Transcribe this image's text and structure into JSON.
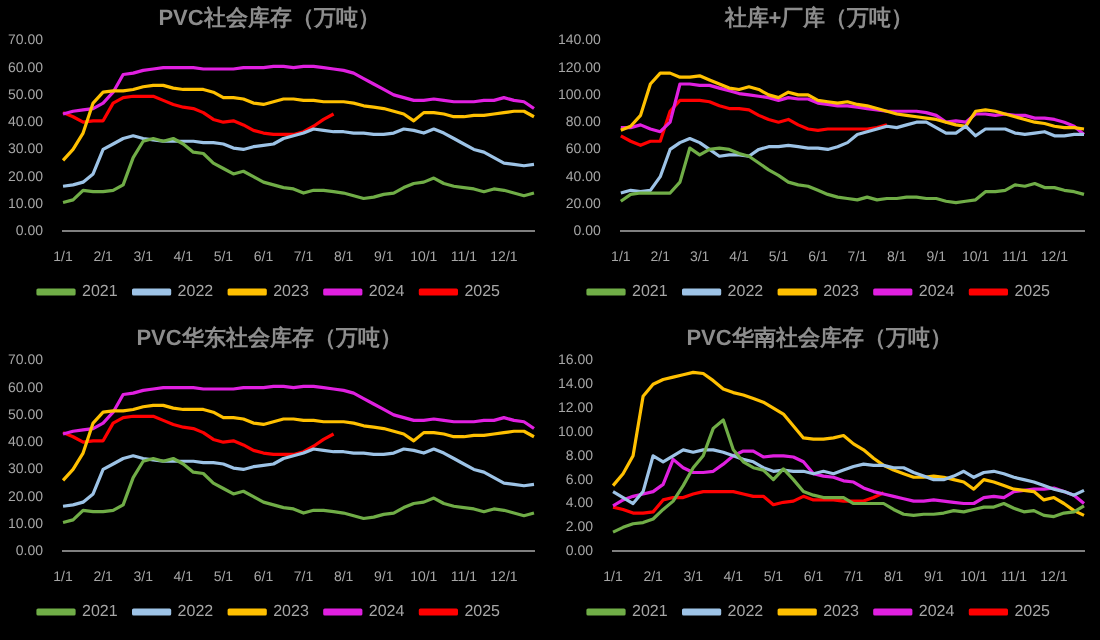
{
  "chart_data": [
    {
      "type": "line",
      "title": "PVC社会库存（万吨）",
      "categories": [
        "1/1",
        null,
        null,
        null,
        "2/1",
        null,
        null,
        null,
        "3/1",
        null,
        null,
        null,
        "4/1",
        null,
        null,
        null,
        "5/1",
        null,
        null,
        null,
        "6/1",
        null,
        null,
        null,
        "7/1",
        null,
        null,
        null,
        "8/1",
        null,
        null,
        null,
        "9/1",
        null,
        null,
        null,
        "10/1",
        null,
        null,
        null,
        "11/1",
        null,
        null,
        null,
        "12/1",
        null,
        null,
        null
      ],
      "ylim": [
        0,
        70
      ],
      "yticks": [
        {
          "value": 0,
          "label": "0.00"
        },
        {
          "value": 10,
          "label": "10.00"
        },
        {
          "value": 20,
          "label": "20.00"
        },
        {
          "value": 30,
          "label": "30.00"
        },
        {
          "value": 40,
          "label": "40.00"
        },
        {
          "value": 50,
          "label": "50.00"
        },
        {
          "value": 60,
          "label": "60.00"
        },
        {
          "value": 70,
          "label": "70.00"
        }
      ],
      "legend": "bottom",
      "marker": "none",
      "series": [
        {
          "name": "2021",
          "color": "#70ad47",
          "values": [
            10.5,
            11.5,
            15,
            14.5,
            14.5,
            15,
            17,
            27,
            33,
            34,
            33,
            34,
            32,
            29,
            28.5,
            25,
            23,
            21,
            22,
            20,
            18,
            17,
            16,
            15.5,
            14,
            15,
            15,
            14.5,
            14,
            13,
            12,
            12.5,
            13.5,
            14,
            16,
            17.5,
            18,
            19.5,
            17.5,
            16.5,
            16,
            15.5,
            14.5,
            15.5,
            15,
            14,
            13,
            14
          ]
        },
        {
          "name": "2022",
          "color": "#9dc3e6",
          "values": [
            16.5,
            17,
            18,
            21,
            30,
            32,
            34,
            35,
            34,
            33.5,
            33,
            33,
            33,
            33,
            32.5,
            32.5,
            32,
            30.5,
            30,
            31,
            31.5,
            32,
            34,
            35,
            36,
            37.5,
            37,
            36.5,
            36.5,
            36,
            36,
            35.5,
            35.5,
            36,
            37.5,
            37,
            36,
            37.5,
            36,
            34,
            32,
            30,
            29,
            27,
            25,
            24.5,
            24,
            24.5
          ]
        },
        {
          "name": "2023",
          "color": "#ffc000",
          "values": [
            26,
            30,
            36,
            47,
            51,
            51.5,
            51.5,
            52,
            53,
            53.5,
            53.5,
            52.5,
            52,
            52,
            52,
            51,
            49,
            49,
            48.5,
            47,
            46.5,
            47.5,
            48.5,
            48.5,
            48,
            48,
            47.5,
            47.5,
            47.5,
            47,
            46,
            45.5,
            45,
            44,
            43,
            40.5,
            43.5,
            43.5,
            43,
            42,
            42,
            42.5,
            42.5,
            43,
            43.5,
            44,
            44,
            42
          ]
        },
        {
          "name": "2024",
          "color": "#e020e0",
          "values": [
            43,
            44,
            44.5,
            45,
            47,
            51,
            57.5,
            58,
            59,
            59.5,
            60,
            60,
            60,
            60,
            59.5,
            59.5,
            59.5,
            59.5,
            60,
            60,
            60,
            60.5,
            60.5,
            60,
            60.5,
            60.5,
            60,
            59.5,
            59,
            58,
            56,
            54,
            52,
            50,
            49,
            48,
            48,
            48.5,
            48,
            47.5,
            47.5,
            47.5,
            48,
            48,
            49,
            48,
            47.5,
            45
          ]
        },
        {
          "name": "2025",
          "color": "#ff0000",
          "values": [
            43.5,
            42,
            40,
            40.5,
            40.5,
            47,
            49,
            49.5,
            49.5,
            49.5,
            48,
            46.5,
            45.5,
            45,
            43.5,
            41,
            40,
            40.5,
            39,
            37,
            36,
            35.5,
            35.5,
            35.5,
            36.5,
            38.5,
            41,
            43,
            null,
            null,
            null,
            null,
            null,
            null,
            null,
            null,
            null,
            null,
            null,
            null,
            null,
            null,
            null,
            null,
            null,
            null,
            null,
            null
          ]
        }
      ]
    },
    {
      "type": "line",
      "title": "社库+厂库（万吨）",
      "categories": [
        "1/1",
        null,
        null,
        null,
        "2/1",
        null,
        null,
        null,
        "3/1",
        null,
        null,
        null,
        "4/1",
        null,
        null,
        null,
        "5/1",
        null,
        null,
        null,
        "6/1",
        null,
        null,
        null,
        "7/1",
        null,
        null,
        null,
        "8/1",
        null,
        null,
        null,
        "9/1",
        null,
        null,
        null,
        "10/1",
        null,
        null,
        null,
        "11/1",
        null,
        null,
        null,
        "12/1",
        null,
        null,
        null
      ],
      "ylim": [
        0,
        140
      ],
      "yticks": [
        {
          "value": 0,
          "label": "0.00"
        },
        {
          "value": 20,
          "label": "20.00"
        },
        {
          "value": 40,
          "label": "40.00"
        },
        {
          "value": 60,
          "label": "60.00"
        },
        {
          "value": 80,
          "label": "80.00"
        },
        {
          "value": 100,
          "label": "100.00"
        },
        {
          "value": 120,
          "label": "120.00"
        },
        {
          "value": 140,
          "label": "140.00"
        }
      ],
      "legend": "bottom",
      "marker": "none",
      "series": [
        {
          "name": "2021",
          "color": "#70ad47",
          "values": [
            22,
            27,
            28,
            28,
            28,
            28,
            36,
            61,
            56,
            60,
            61,
            60,
            57,
            55,
            50,
            45,
            41,
            36,
            34,
            33,
            30,
            27,
            25,
            24,
            23,
            25,
            23,
            24,
            24,
            25,
            25,
            24,
            24,
            22,
            21,
            22,
            23,
            29,
            29,
            30,
            34,
            33,
            35,
            32,
            32,
            30,
            29,
            27
          ]
        },
        {
          "name": "2022",
          "color": "#9dc3e6",
          "values": [
            28,
            30,
            29,
            30,
            40,
            60,
            65,
            68,
            65,
            60,
            55,
            56,
            56,
            55,
            60,
            62,
            62,
            63,
            62,
            61,
            61,
            60,
            62,
            65,
            71,
            73,
            75,
            77,
            76,
            78,
            80,
            80,
            76,
            72,
            72,
            77,
            70,
            75,
            75,
            75,
            72,
            71,
            72,
            73,
            70,
            70,
            71,
            71
          ]
        },
        {
          "name": "2023",
          "color": "#ffc000",
          "values": [
            74,
            77,
            85,
            108,
            116,
            116,
            113,
            113,
            114,
            111,
            108,
            105,
            104,
            106,
            104,
            100,
            98,
            102,
            100,
            100,
            96,
            95,
            94,
            95,
            93,
            92,
            90,
            88,
            86,
            85,
            84,
            83,
            82,
            80,
            78,
            77,
            88,
            89,
            88,
            86,
            84,
            82,
            80,
            79,
            77,
            76,
            76,
            75
          ]
        },
        {
          "name": "2024",
          "color": "#e020e0",
          "values": [
            76,
            76,
            78,
            75,
            73,
            80,
            108,
            108,
            107,
            107,
            105,
            103,
            101,
            100,
            99,
            98,
            96,
            98,
            97,
            97,
            94,
            93,
            92,
            92,
            91,
            90,
            89,
            88,
            88,
            88,
            88,
            87,
            85,
            80,
            81,
            80,
            86,
            86,
            85,
            86,
            85,
            85,
            83,
            83,
            82,
            80,
            77,
            71
          ]
        },
        {
          "name": "2025",
          "color": "#ff0000",
          "values": [
            70,
            66,
            63,
            66,
            66,
            88,
            96,
            96,
            96,
            95,
            92,
            90,
            90,
            89,
            85,
            82,
            80,
            82,
            78,
            75,
            74,
            75,
            75,
            75,
            75,
            75,
            76,
            78,
            null,
            null,
            null,
            null,
            null,
            null,
            null,
            null,
            null,
            null,
            null,
            null,
            null,
            null,
            null,
            null,
            null,
            null,
            null,
            null
          ]
        }
      ]
    },
    {
      "type": "line",
      "title": "PVC华东社会库存（万吨）",
      "categories": [
        "1/1",
        null,
        null,
        null,
        "2/1",
        null,
        null,
        null,
        "3/1",
        null,
        null,
        null,
        "4/1",
        null,
        null,
        null,
        "5/1",
        null,
        null,
        null,
        "6/1",
        null,
        null,
        null,
        "7/1",
        null,
        null,
        null,
        "8/1",
        null,
        null,
        null,
        "9/1",
        null,
        null,
        null,
        "10/1",
        null,
        null,
        null,
        "11/1",
        null,
        null,
        null,
        "12/1",
        null,
        null,
        null
      ],
      "ylim": [
        0,
        70
      ],
      "yticks": [
        {
          "value": 0,
          "label": "0.00"
        },
        {
          "value": 10,
          "label": "10.00"
        },
        {
          "value": 20,
          "label": "20.00"
        },
        {
          "value": 30,
          "label": "30.00"
        },
        {
          "value": 40,
          "label": "40.00"
        },
        {
          "value": 50,
          "label": "50.00"
        },
        {
          "value": 60,
          "label": "60.00"
        },
        {
          "value": 70,
          "label": "70.00"
        }
      ],
      "legend": "bottom",
      "marker": "none",
      "series": [
        {
          "name": "2021",
          "color": "#70ad47",
          "values": [
            10.5,
            11.5,
            15,
            14.5,
            14.5,
            15,
            17,
            27,
            33,
            34,
            33,
            34,
            32,
            29,
            28.5,
            25,
            23,
            21,
            22,
            20,
            18,
            17,
            16,
            15.5,
            14,
            15,
            15,
            14.5,
            14,
            13,
            12,
            12.5,
            13.5,
            14,
            16,
            17.5,
            18,
            19.5,
            17.5,
            16.5,
            16,
            15.5,
            14.5,
            15.5,
            15,
            14,
            13,
            14
          ]
        },
        {
          "name": "2022",
          "color": "#9dc3e6",
          "values": [
            16.5,
            17,
            18,
            21,
            30,
            32,
            34,
            35,
            34,
            33.5,
            33,
            33,
            33,
            33,
            32.5,
            32.5,
            32,
            30.5,
            30,
            31,
            31.5,
            32,
            34,
            35,
            36,
            37.5,
            37,
            36.5,
            36.5,
            36,
            36,
            35.5,
            35.5,
            36,
            37.5,
            37,
            36,
            37.5,
            36,
            34,
            32,
            30,
            29,
            27,
            25,
            24.5,
            24,
            24.5
          ]
        },
        {
          "name": "2023",
          "color": "#ffc000",
          "values": [
            26,
            30,
            36,
            47,
            51,
            51.5,
            51.5,
            52,
            53,
            53.5,
            53.5,
            52.5,
            52,
            52,
            52,
            51,
            49,
            49,
            48.5,
            47,
            46.5,
            47.5,
            48.5,
            48.5,
            48,
            48,
            47.5,
            47.5,
            47.5,
            47,
            46,
            45.5,
            45,
            44,
            43,
            40.5,
            43.5,
            43.5,
            43,
            42,
            42,
            42.5,
            42.5,
            43,
            43.5,
            44,
            44,
            42
          ]
        },
        {
          "name": "2024",
          "color": "#e020e0",
          "values": [
            43,
            44,
            44.5,
            45,
            47,
            51,
            57.5,
            58,
            59,
            59.5,
            60,
            60,
            60,
            60,
            59.5,
            59.5,
            59.5,
            59.5,
            60,
            60,
            60,
            60.5,
            60.5,
            60,
            60.5,
            60.5,
            60,
            59.5,
            59,
            58,
            56,
            54,
            52,
            50,
            49,
            48,
            48,
            48.5,
            48,
            47.5,
            47.5,
            47.5,
            48,
            48,
            49,
            48,
            47.5,
            45
          ]
        },
        {
          "name": "2025",
          "color": "#ff0000",
          "values": [
            43.5,
            42,
            40,
            40.5,
            40.5,
            47,
            49,
            49.5,
            49.5,
            49.5,
            48,
            46.5,
            45.5,
            45,
            43.5,
            41,
            40,
            40.5,
            39,
            37,
            36,
            35.5,
            35.5,
            35.5,
            36.5,
            38.5,
            41,
            43,
            null,
            null,
            null,
            null,
            null,
            null,
            null,
            null,
            null,
            null,
            null,
            null,
            null,
            null,
            null,
            null,
            null,
            null,
            null,
            null
          ]
        }
      ]
    },
    {
      "type": "line",
      "title": "PVC华南社会库存（万吨）",
      "categories": [
        "1/1",
        null,
        null,
        null,
        "2/1",
        null,
        null,
        null,
        "3/1",
        null,
        null,
        null,
        "4/1",
        null,
        null,
        null,
        "5/1",
        null,
        null,
        null,
        "6/1",
        null,
        null,
        null,
        "7/1",
        null,
        null,
        null,
        "8/1",
        null,
        null,
        null,
        "9/1",
        null,
        null,
        null,
        "10/1",
        null,
        null,
        null,
        "11/1",
        null,
        null,
        null,
        "12/1",
        null,
        null,
        null
      ],
      "ylim": [
        0,
        16
      ],
      "yticks": [
        {
          "value": 0,
          "label": "0.00"
        },
        {
          "value": 2,
          "label": "2.00"
        },
        {
          "value": 4,
          "label": "4.00"
        },
        {
          "value": 6,
          "label": "6.00"
        },
        {
          "value": 8,
          "label": "8.00"
        },
        {
          "value": 10,
          "label": "10.00"
        },
        {
          "value": 12,
          "label": "12.00"
        },
        {
          "value": 14,
          "label": "14.00"
        },
        {
          "value": 16,
          "label": "16.00"
        }
      ],
      "legend": "bottom",
      "marker": "none",
      "series": [
        {
          "name": "2021",
          "color": "#70ad47",
          "values": [
            1.6,
            2.0,
            2.3,
            2.4,
            2.7,
            3.5,
            4.2,
            5.5,
            7.0,
            8.0,
            10.3,
            11.0,
            8.5,
            7.5,
            7.0,
            6.8,
            6.0,
            6.9,
            6.0,
            5.0,
            4.7,
            4.5,
            4.5,
            4.5,
            4.0,
            4.0,
            4.0,
            4.0,
            3.5,
            3.1,
            3.0,
            3.1,
            3.1,
            3.2,
            3.4,
            3.3,
            3.5,
            3.7,
            3.7,
            4.0,
            3.6,
            3.3,
            3.4,
            3.0,
            2.9,
            3.2,
            3.3,
            3.8
          ]
        },
        {
          "name": "2022",
          "color": "#9dc3e6",
          "values": [
            5.0,
            4.5,
            4.0,
            5.0,
            8.0,
            7.5,
            8.0,
            8.5,
            8.3,
            8.5,
            8.5,
            8.3,
            8.0,
            7.7,
            7.5,
            7.0,
            6.7,
            6.8,
            6.7,
            6.7,
            6.5,
            6.7,
            6.5,
            6.8,
            7.1,
            7.3,
            7.2,
            7.2,
            7.0,
            7.0,
            6.6,
            6.3,
            6.0,
            6.0,
            6.3,
            6.7,
            6.2,
            6.6,
            6.7,
            6.5,
            6.2,
            6.0,
            5.8,
            5.5,
            5.2,
            5.0,
            4.7,
            5.1
          ]
        },
        {
          "name": "2023",
          "color": "#ffc000",
          "values": [
            5.5,
            6.5,
            8.0,
            13.0,
            14.0,
            14.4,
            14.6,
            14.8,
            15.0,
            14.9,
            14.3,
            13.6,
            13.3,
            13.1,
            12.8,
            12.5,
            12.0,
            11.5,
            10.5,
            9.5,
            9.4,
            9.4,
            9.5,
            9.7,
            9.0,
            8.5,
            7.8,
            7.2,
            6.8,
            6.5,
            6.2,
            6.2,
            6.3,
            6.2,
            6.0,
            5.8,
            5.2,
            6.0,
            5.8,
            5.5,
            5.2,
            5.1,
            5.0,
            4.3,
            4.5,
            4.0,
            3.4,
            3.0
          ]
        },
        {
          "name": "2024",
          "color": "#e020e0",
          "values": [
            3.8,
            4.3,
            4.6,
            4.8,
            5.0,
            5.6,
            7.7,
            7.0,
            6.6,
            6.6,
            6.7,
            7.3,
            8.0,
            8.4,
            8.4,
            7.9,
            8.0,
            8.0,
            7.9,
            7.5,
            6.5,
            6.3,
            6.2,
            5.9,
            5.8,
            5.3,
            5.0,
            4.8,
            4.6,
            4.4,
            4.2,
            4.2,
            4.3,
            4.2,
            4.1,
            4.0,
            4.0,
            4.5,
            4.6,
            4.5,
            5.0,
            5.1,
            5.2,
            5.2,
            5.3,
            5.0,
            4.7,
            4.0
          ]
        },
        {
          "name": "2025",
          "color": "#ff0000",
          "values": [
            3.7,
            3.5,
            3.2,
            3.2,
            3.3,
            4.3,
            4.5,
            4.5,
            4.8,
            5.0,
            5.0,
            5.0,
            5.0,
            4.8,
            4.6,
            4.6,
            3.9,
            4.1,
            4.2,
            4.6,
            4.3,
            4.3,
            4.3,
            4.2,
            4.2,
            4.2,
            4.5,
            4.9,
            null,
            null,
            null,
            null,
            null,
            null,
            null,
            null,
            null,
            null,
            null,
            null,
            null,
            null,
            null,
            null,
            null,
            null,
            null,
            null
          ]
        }
      ]
    }
  ]
}
